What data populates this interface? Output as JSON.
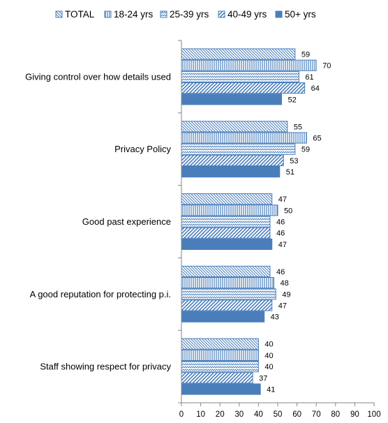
{
  "chart_data": {
    "type": "bar",
    "orientation": "horizontal",
    "categories": [
      "Giving control over how details used",
      "Privacy Policy",
      "Good past experience",
      "A good reputation for protecting p.i.",
      "Staff showing respect for privacy"
    ],
    "series": [
      {
        "name": "TOTAL",
        "values": [
          59,
          55,
          47,
          46,
          40
        ],
        "pattern": "diag-down",
        "color": "#4a7ebb"
      },
      {
        "name": "18-24 yrs",
        "values": [
          70,
          65,
          50,
          48,
          40
        ],
        "pattern": "vertical",
        "color": "#4a7ebb"
      },
      {
        "name": "25-39 yrs",
        "values": [
          61,
          59,
          46,
          49,
          40
        ],
        "pattern": "zigzag",
        "color": "#4a7ebb"
      },
      {
        "name": "40-49 yrs",
        "values": [
          64,
          53,
          46,
          47,
          37
        ],
        "pattern": "diag-up",
        "color": "#4a7ebb"
      },
      {
        "name": "50+ yrs",
        "values": [
          52,
          51,
          47,
          43,
          41
        ],
        "pattern": "solid",
        "color": "#4a7ebb"
      }
    ],
    "xlim": [
      0,
      100
    ],
    "xticks": [
      0,
      10,
      20,
      30,
      40,
      50,
      60,
      70,
      80,
      90,
      100
    ],
    "legend_position": "top",
    "grid": false,
    "title": "",
    "xlabel": "",
    "ylabel": ""
  }
}
